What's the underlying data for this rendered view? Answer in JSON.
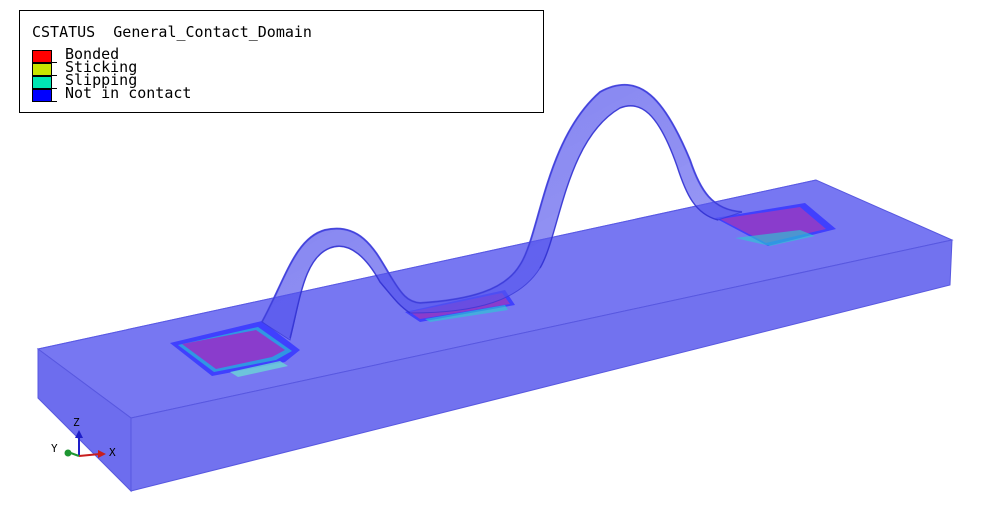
{
  "legend": {
    "title": "CSTATUS  General_Contact_Domain",
    "entries": [
      {
        "label": "Bonded",
        "color": "#ff0000"
      },
      {
        "label": "Sticking",
        "color": "#c8e600"
      },
      {
        "label": "Slipping",
        "color": "#00e6b4"
      },
      {
        "label": "Not in contact",
        "color": "#0000ff"
      }
    ]
  },
  "triad": {
    "x_label": "X",
    "y_label": "Y",
    "z_label": "Z",
    "x_color": "#c81e1e",
    "y_color": "#1e9632",
    "z_color": "#1e1ec8"
  },
  "colors": {
    "substrate": "#6464f0",
    "wire": "#5050e6",
    "pad_core": "#8c3cc8",
    "pad_edge": "#3232ff"
  }
}
